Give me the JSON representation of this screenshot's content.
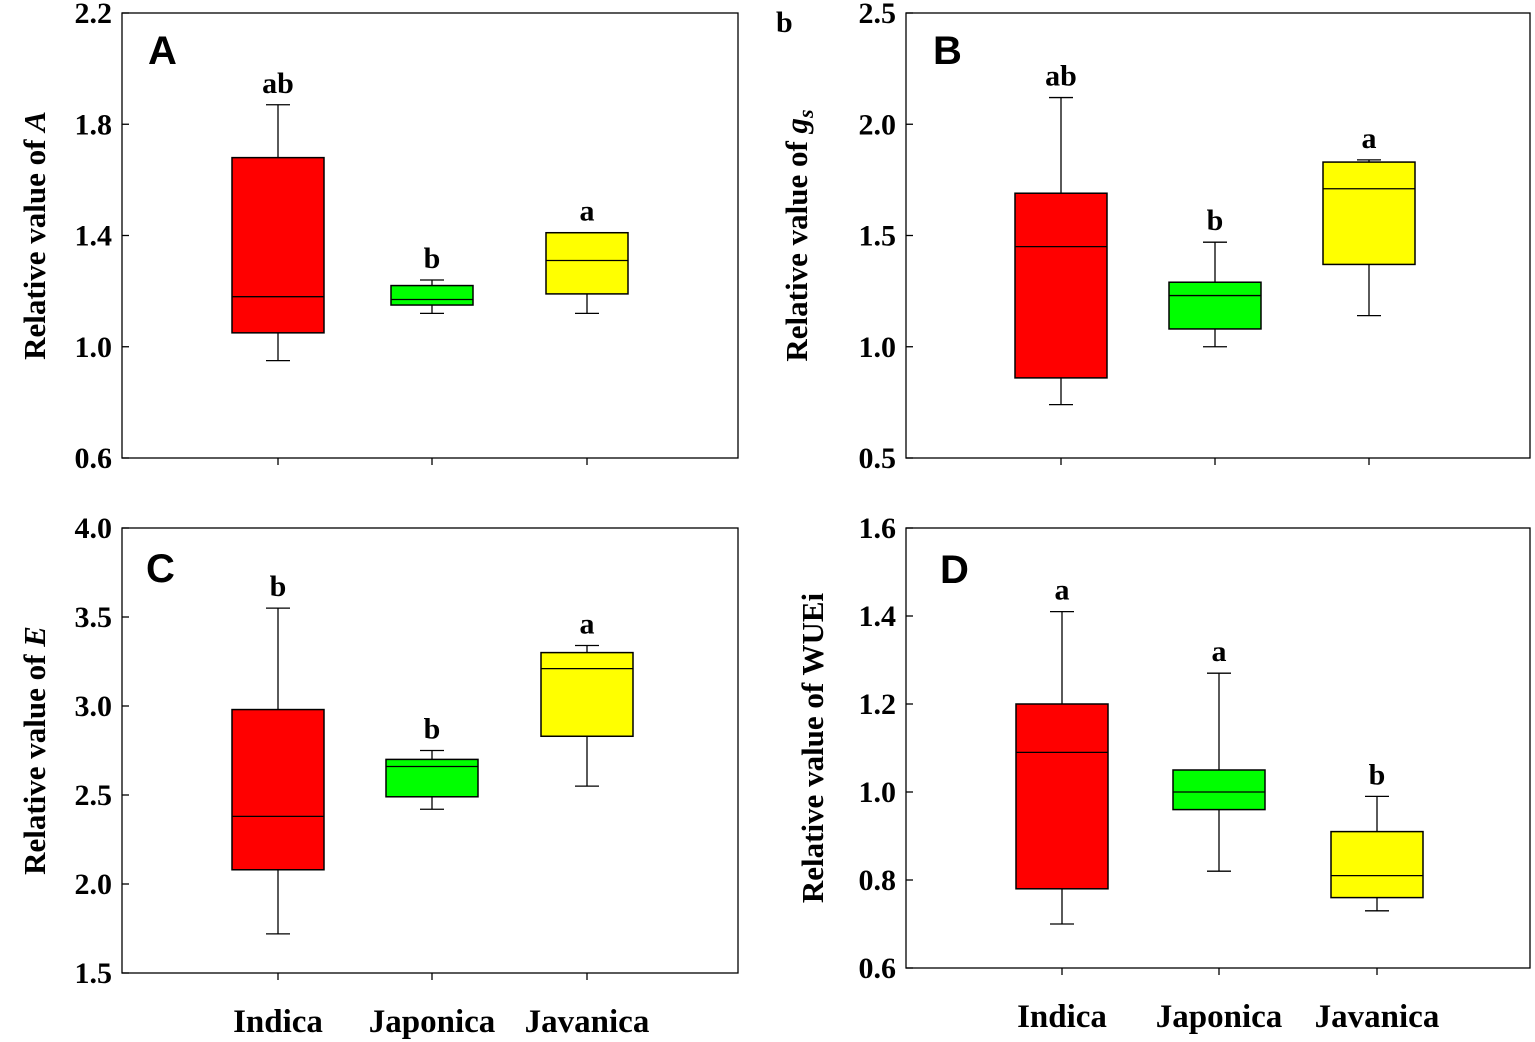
{
  "colors": {
    "Indica": "#ff0000",
    "Japonica": "#00ff00",
    "Javanica": "#ffff00"
  },
  "corner_note": "b",
  "chart_data": [
    {
      "type": "box",
      "panel": "A",
      "ylabel": "Relative value of A",
      "ylabel_parts": [
        {
          "text": "Relative value of ",
          "italic": false
        },
        {
          "text": "A",
          "italic": true
        }
      ],
      "ylim": [
        0.6,
        2.2
      ],
      "yticks": [
        "0.6",
        "1.0",
        "1.4",
        "1.8",
        "2.2"
      ],
      "categories": [
        "Indica",
        "Japonica",
        "Javanica"
      ],
      "show_xlabels": true,
      "boxes": [
        {
          "category": "Indica",
          "whisker_low": 0.95,
          "q1": 1.05,
          "median": 1.18,
          "q3": 1.68,
          "whisker_high": 1.87,
          "sig": "ab"
        },
        {
          "category": "Japonica",
          "whisker_low": 1.12,
          "q1": 1.15,
          "median": 1.17,
          "q3": 1.22,
          "whisker_high": 1.24,
          "sig": "b"
        },
        {
          "category": "Javanica",
          "whisker_low": 1.12,
          "q1": 1.19,
          "median": 1.31,
          "q3": 1.41,
          "whisker_high": 1.41,
          "sig": "a"
        }
      ]
    },
    {
      "type": "box",
      "panel": "B",
      "ylabel": "Relative value of gs",
      "ylabel_parts": [
        {
          "text": "Relative value of ",
          "italic": false
        },
        {
          "text": "g",
          "italic": true
        },
        {
          "text": "s",
          "italic": true,
          "sub": true
        }
      ],
      "ylim": [
        0.5,
        2.5
      ],
      "yticks": [
        "0.5",
        "1.0",
        "1.5",
        "2.0",
        "2.5"
      ],
      "categories": [
        "Indica",
        "Japonica",
        "Javanica"
      ],
      "show_xlabels": false,
      "boxes": [
        {
          "category": "Indica",
          "whisker_low": 0.74,
          "q1": 0.86,
          "median": 1.45,
          "q3": 1.69,
          "whisker_high": 2.12,
          "sig": "ab"
        },
        {
          "category": "Japonica",
          "whisker_low": 1.0,
          "q1": 1.08,
          "median": 1.23,
          "q3": 1.29,
          "whisker_high": 1.47,
          "sig": "b"
        },
        {
          "category": "Javanica",
          "whisker_low": 1.14,
          "q1": 1.37,
          "median": 1.71,
          "q3": 1.83,
          "whisker_high": 1.84,
          "sig": "a"
        }
      ]
    },
    {
      "type": "box",
      "panel": "C",
      "ylabel": "Relative value of E",
      "ylabel_parts": [
        {
          "text": "Relative value of ",
          "italic": false
        },
        {
          "text": "E",
          "italic": true
        }
      ],
      "ylim": [
        1.5,
        4.0
      ],
      "yticks": [
        "1.5",
        "2.0",
        "2.5",
        "3.0",
        "3.5",
        "4.0"
      ],
      "categories": [
        "Indica",
        "Japonica",
        "Javanica"
      ],
      "show_xlabels": true,
      "boxes": [
        {
          "category": "Indica",
          "whisker_low": 1.72,
          "q1": 2.08,
          "median": 2.38,
          "q3": 2.98,
          "whisker_high": 3.55,
          "sig": "b"
        },
        {
          "category": "Japonica",
          "whisker_low": 2.42,
          "q1": 2.49,
          "median": 2.66,
          "q3": 2.7,
          "whisker_high": 2.75,
          "sig": "b"
        },
        {
          "category": "Javanica",
          "whisker_low": 2.55,
          "q1": 2.83,
          "median": 3.21,
          "q3": 3.3,
          "whisker_high": 3.34,
          "sig": "a"
        }
      ]
    },
    {
      "type": "box",
      "panel": "D",
      "ylabel": "Relative value of WUEi",
      "ylabel_parts": [
        {
          "text": "Relative value of WUEi",
          "italic": false
        }
      ],
      "ylim": [
        0.6,
        1.6
      ],
      "yticks": [
        "0.6",
        "0.8",
        "1.0",
        "1.2",
        "1.4",
        "1.6"
      ],
      "categories": [
        "Indica",
        "Japonica",
        "Javanica"
      ],
      "show_xlabels": true,
      "boxes": [
        {
          "category": "Indica",
          "whisker_low": 0.7,
          "q1": 0.78,
          "median": 1.09,
          "q3": 1.2,
          "whisker_high": 1.41,
          "sig": "a"
        },
        {
          "category": "Japonica",
          "whisker_low": 0.82,
          "q1": 0.96,
          "median": 1.0,
          "q3": 1.05,
          "whisker_high": 1.27,
          "sig": "a"
        },
        {
          "category": "Javanica",
          "whisker_low": 0.73,
          "q1": 0.76,
          "median": 0.81,
          "q3": 0.91,
          "whisker_high": 0.99,
          "sig": "b"
        }
      ]
    }
  ]
}
